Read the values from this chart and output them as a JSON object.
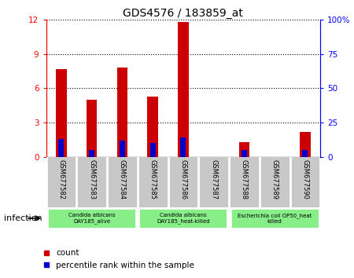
{
  "title": "GDS4576 / 183859_at",
  "samples": [
    "GSM677582",
    "GSM677583",
    "GSM677584",
    "GSM677585",
    "GSM677586",
    "GSM677587",
    "GSM677588",
    "GSM677589",
    "GSM677590"
  ],
  "counts": [
    7.7,
    5.0,
    7.8,
    5.3,
    11.8,
    0.0,
    1.3,
    0.0,
    2.2
  ],
  "percentiles": [
    13,
    5,
    12,
    10,
    14,
    0,
    5,
    0,
    5
  ],
  "ylim_left": [
    0,
    12
  ],
  "ylim_right": [
    0,
    100
  ],
  "yticks_left": [
    0,
    3,
    6,
    9,
    12
  ],
  "yticks_right": [
    0,
    25,
    50,
    75,
    100
  ],
  "ytick_labels_right": [
    "0",
    "25",
    "50",
    "75",
    "100%"
  ],
  "bar_color": "#cc0000",
  "percentile_color": "#0000cc",
  "plot_bg": "#ffffff",
  "xlabels_bg": "#c8c8c8",
  "groups": [
    {
      "label": "Candida albicans\nDAY185_alive",
      "start": 0,
      "end": 3,
      "color": "#88ee88"
    },
    {
      "label": "Candida albicans\nDAY185_heat-killed",
      "start": 3,
      "end": 6,
      "color": "#88ee88"
    },
    {
      "label": "Escherichia coli OP50_heat\nkilled",
      "start": 6,
      "end": 9,
      "color": "#88ee88"
    }
  ],
  "group_label": "infection",
  "legend_count_label": "count",
  "legend_percentile_label": "percentile rank within the sample",
  "bar_width": 0.35,
  "percentile_bar_width": 0.18
}
